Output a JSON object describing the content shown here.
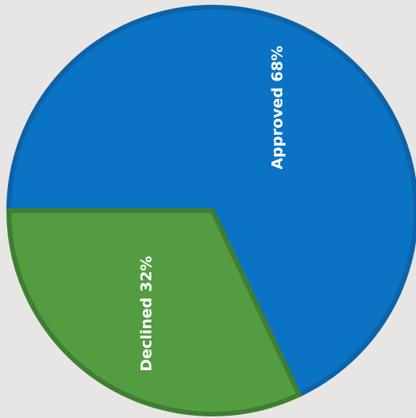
{
  "chart_data": {
    "type": "pie",
    "slices": [
      {
        "name": "Approved",
        "value": 68,
        "label": "Approved 68%",
        "color": "#0a73c4",
        "stroke": "#0d62a8"
      },
      {
        "name": "Declined",
        "value": 32,
        "label": "Declined 32%",
        "color": "#539c42",
        "stroke": "#3f7f33"
      }
    ],
    "background": "#e8e6e5",
    "legend": "none",
    "labels": "inside, rotated"
  }
}
